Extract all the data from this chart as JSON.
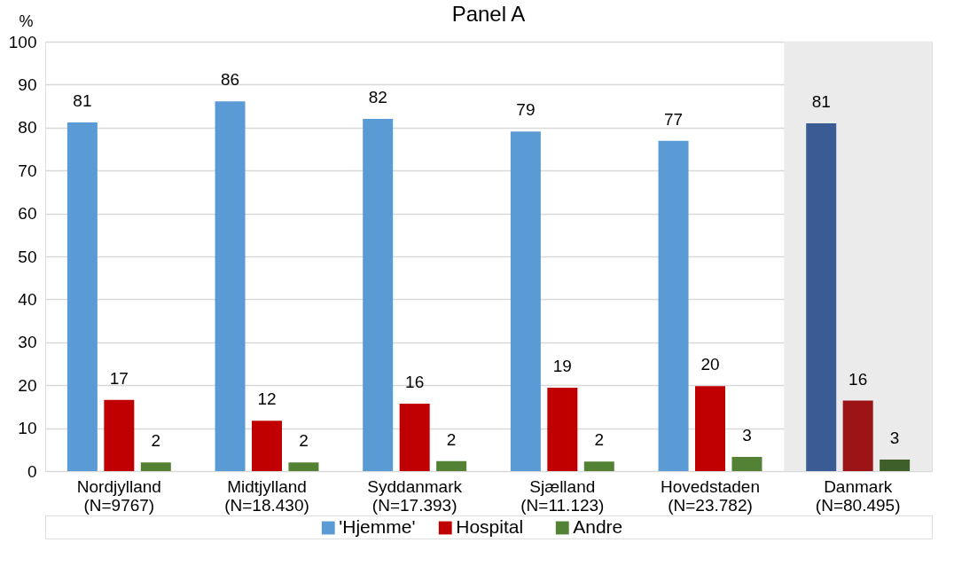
{
  "chart_data": {
    "type": "bar",
    "title": "Panel A",
    "ylabel": "%",
    "categories": [
      "Nordjylland\n(N=9767)",
      "Midtjylland\n(N=18.430)",
      "Syddanmark\n(N=17.393)",
      "Sjælland\n(N=11.123)",
      "Hovedstaden\n(N=23.782)",
      "Danmark\n(N=80.495)"
    ],
    "series": [
      {
        "name": "'Hjemme'",
        "color": "#5b9bd5",
        "colors": [
          "#5b9bd5",
          "#5b9bd5",
          "#5b9bd5",
          "#5b9bd5",
          "#5b9bd5",
          "#3a5b94"
        ],
        "values": [
          81.2,
          86.1,
          82.0,
          79.1,
          76.9,
          81.0
        ],
        "value_labels": [
          "81",
          "86",
          "82",
          "79",
          "77",
          "81"
        ]
      },
      {
        "name": "Hospital",
        "color": "#c00000",
        "colors": [
          "#c00000",
          "#c00000",
          "#c00000",
          "#c00000",
          "#c00000",
          "#9c1316"
        ],
        "values": [
          16.6,
          11.7,
          15.7,
          19.4,
          19.8,
          16.4
        ],
        "value_labels": [
          "17",
          "12",
          "16",
          "19",
          "20",
          "16"
        ]
      },
      {
        "name": "Andre",
        "color": "#548235",
        "colors": [
          "#548235",
          "#548235",
          "#548235",
          "#548235",
          "#548235",
          "#3f5f2a"
        ],
        "values": [
          2.0,
          2.0,
          2.3,
          2.2,
          3.3,
          2.7
        ],
        "value_labels": [
          "2",
          "2",
          "2",
          "2",
          "3",
          "3"
        ]
      }
    ],
    "bands": [
      {
        "axis": "x",
        "from": "Danmark\n(N=80.495)",
        "to": "Danmark\n(N=80.495)",
        "color": "#ebebeb"
      }
    ],
    "ylim": [
      0,
      100
    ],
    "yticks": [
      0,
      10,
      20,
      30,
      40,
      50,
      60,
      70,
      80,
      90,
      100
    ],
    "grid": "y",
    "legend": "bottom"
  }
}
